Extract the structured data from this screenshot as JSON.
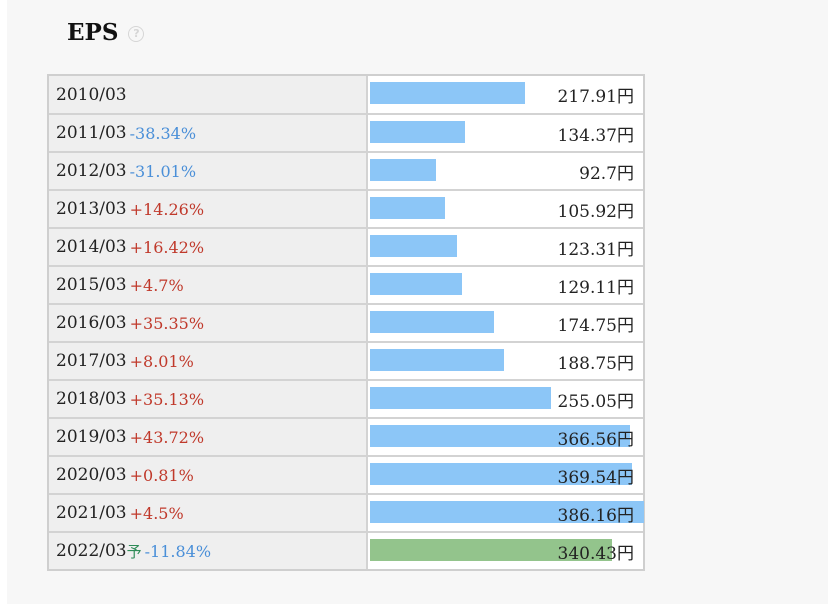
{
  "header": {
    "title": "EPS",
    "help_icon": "help-circle-icon"
  },
  "colors": {
    "bar_actual": "#8cc6f7",
    "bar_forecast": "#93c48c",
    "change_negative": "#4a8fd8",
    "change_positive": "#c0392b",
    "forecast_mark": "#2e8b57"
  },
  "chart_data": {
    "type": "bar",
    "title": "EPS",
    "orientation": "horizontal",
    "unit": "円",
    "scale_max": 386.16,
    "rows": [
      {
        "period": "2010/03",
        "forecast": "",
        "change": "",
        "value": 217.91,
        "value_label": "217.91円"
      },
      {
        "period": "2011/03",
        "forecast": "",
        "change": "-38.34%",
        "value": 134.37,
        "value_label": "134.37円"
      },
      {
        "period": "2012/03",
        "forecast": "",
        "change": "-31.01%",
        "value": 92.7,
        "value_label": "92.7円"
      },
      {
        "period": "2013/03",
        "forecast": "",
        "change": "+14.26%",
        "value": 105.92,
        "value_label": "105.92円"
      },
      {
        "period": "2014/03",
        "forecast": "",
        "change": "+16.42%",
        "value": 123.31,
        "value_label": "123.31円"
      },
      {
        "period": "2015/03",
        "forecast": "",
        "change": "+4.7%",
        "value": 129.11,
        "value_label": "129.11円"
      },
      {
        "period": "2016/03",
        "forecast": "",
        "change": "+35.35%",
        "value": 174.75,
        "value_label": "174.75円"
      },
      {
        "period": "2017/03",
        "forecast": "",
        "change": "+8.01%",
        "value": 188.75,
        "value_label": "188.75円"
      },
      {
        "period": "2018/03",
        "forecast": "",
        "change": "+35.13%",
        "value": 255.05,
        "value_label": "255.05円"
      },
      {
        "period": "2019/03",
        "forecast": "",
        "change": "+43.72%",
        "value": 366.56,
        "value_label": "366.56円"
      },
      {
        "period": "2020/03",
        "forecast": "",
        "change": "+0.81%",
        "value": 369.54,
        "value_label": "369.54円"
      },
      {
        "period": "2021/03",
        "forecast": "",
        "change": "+4.5%",
        "value": 386.16,
        "value_label": "386.16円"
      },
      {
        "period": "2022/03",
        "forecast": "予",
        "change": "-11.84%",
        "value": 340.43,
        "value_label": "340.43円"
      }
    ]
  }
}
